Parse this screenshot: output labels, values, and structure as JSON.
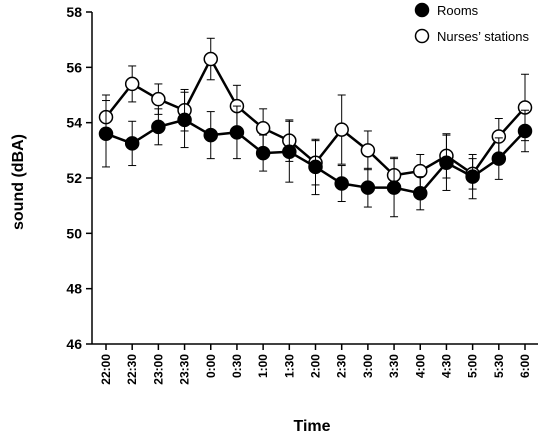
{
  "chart_data": {
    "type": "line",
    "xlabel": "Time",
    "ylabel": "sound (dBA)",
    "ylim": [
      46,
      58
    ],
    "yticks": [
      46,
      48,
      50,
      52,
      54,
      56,
      58
    ],
    "categories": [
      "22:00",
      "22:30",
      "23:00",
      "23:30",
      "0:00",
      "0:30",
      "1:00",
      "1:30",
      "2:00",
      "2:30",
      "3:00",
      "3:30",
      "4:00",
      "4:30",
      "5:00",
      "5:30",
      "6:00"
    ],
    "legend_position": "top-right",
    "grid": false,
    "series": [
      {
        "name": "Rooms",
        "marker": "filled-circle",
        "color": "#000000",
        "values": [
          53.6,
          53.25,
          53.85,
          54.1,
          53.55,
          53.65,
          52.9,
          52.95,
          52.4,
          51.8,
          51.65,
          51.65,
          51.45,
          52.55,
          52.05,
          52.7,
          53.7
        ],
        "error": [
          1.2,
          0.8,
          0.65,
          1.0,
          0.85,
          0.95,
          0.65,
          1.1,
          1.0,
          0.65,
          0.7,
          1.05,
          0.6,
          1.0,
          0.8,
          0.75,
          0.75
        ]
      },
      {
        "name": "Nurses’ stations",
        "marker": "open-circle",
        "color": "#000000",
        "values": [
          54.2,
          55.4,
          54.85,
          54.45,
          56.3,
          54.6,
          53.8,
          53.35,
          52.55,
          53.75,
          53.0,
          52.1,
          52.25,
          52.8,
          52.15,
          53.5,
          54.55
        ],
        "error": [
          0.8,
          0.65,
          0.55,
          0.75,
          0.75,
          0.75,
          0.7,
          0.75,
          0.8,
          1.25,
          0.7,
          0.65,
          0.6,
          0.8,
          0.55,
          0.65,
          1.2
        ]
      }
    ]
  }
}
